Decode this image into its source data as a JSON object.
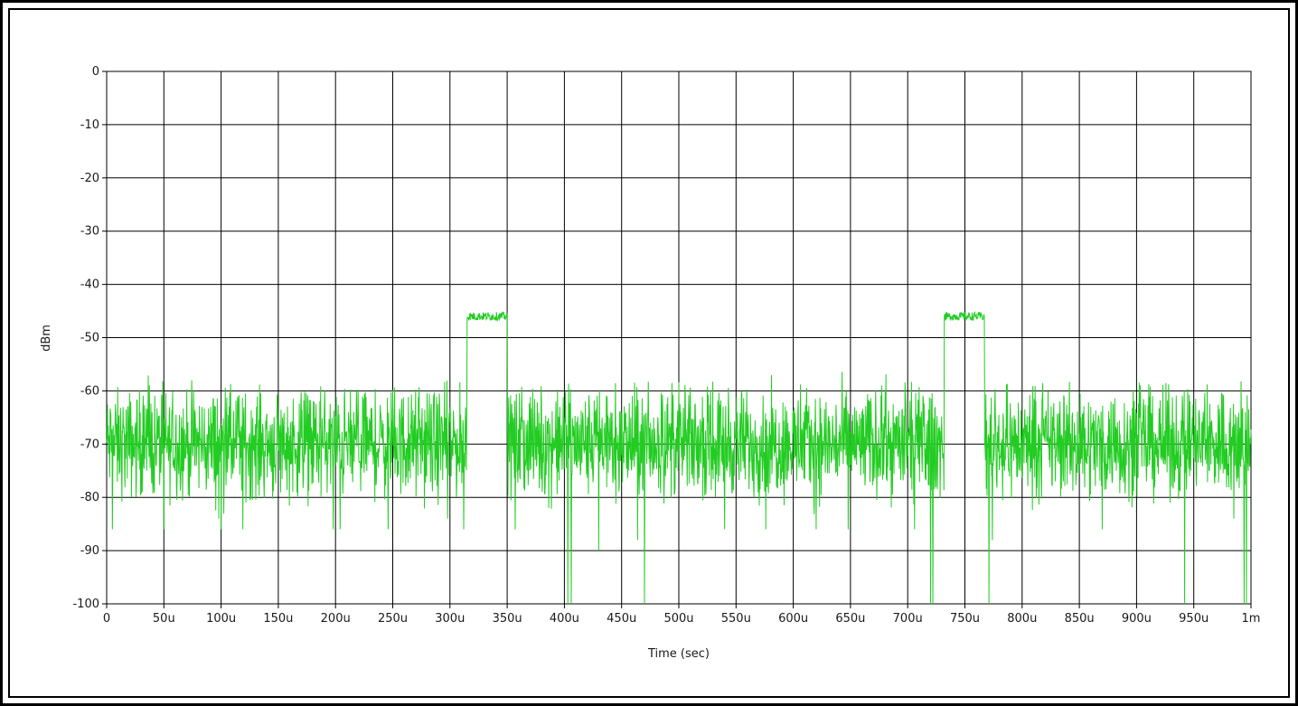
{
  "chart_data": {
    "type": "line",
    "title": "",
    "xlabel": "Time (sec)",
    "ylabel": "dBm",
    "xlim": [
      0,
      1000
    ],
    "ylim": [
      -100,
      0
    ],
    "x_unit": "microseconds",
    "grid": true,
    "legend": "none",
    "x_ticks": [
      {
        "value": 0,
        "label": "0"
      },
      {
        "value": 50,
        "label": "50u"
      },
      {
        "value": 100,
        "label": "100u"
      },
      {
        "value": 150,
        "label": "150u"
      },
      {
        "value": 200,
        "label": "200u"
      },
      {
        "value": 250,
        "label": "250u"
      },
      {
        "value": 300,
        "label": "300u"
      },
      {
        "value": 350,
        "label": "350u"
      },
      {
        "value": 400,
        "label": "400u"
      },
      {
        "value": 450,
        "label": "450u"
      },
      {
        "value": 500,
        "label": "500u"
      },
      {
        "value": 550,
        "label": "550u"
      },
      {
        "value": 600,
        "label": "600u"
      },
      {
        "value": 650,
        "label": "650u"
      },
      {
        "value": 700,
        "label": "700u"
      },
      {
        "value": 750,
        "label": "750u"
      },
      {
        "value": 800,
        "label": "800u"
      },
      {
        "value": 850,
        "label": "850u"
      },
      {
        "value": 900,
        "label": "900u"
      },
      {
        "value": 950,
        "label": "950u"
      },
      {
        "value": 1000,
        "label": "1m"
      }
    ],
    "y_ticks": [
      {
        "value": 0,
        "label": "0"
      },
      {
        "value": -10,
        "label": "-10"
      },
      {
        "value": -20,
        "label": "-20"
      },
      {
        "value": -30,
        "label": "-30"
      },
      {
        "value": -40,
        "label": "-40"
      },
      {
        "value": -50,
        "label": "-50"
      },
      {
        "value": -60,
        "label": "-60"
      },
      {
        "value": -70,
        "label": "-70"
      },
      {
        "value": -80,
        "label": "-80"
      },
      {
        "value": -90,
        "label": "-90"
      },
      {
        "value": -100,
        "label": "-100"
      }
    ],
    "series": [
      {
        "color": "#22cc22",
        "description": "noise floor approx -70 dBm with two pulse bursts at approx -46 dBm",
        "noise_floor_mean": -70,
        "noise_spread": 6,
        "bursts": [
          {
            "start": 315,
            "end": 350,
            "level": -46
          },
          {
            "start": 732,
            "end": 767,
            "level": -46
          }
        ],
        "dropouts": [
          {
            "x": 5,
            "y": -86
          },
          {
            "x": 50,
            "y": -86
          },
          {
            "x": 98,
            "y": -84
          },
          {
            "x": 100,
            "y": -86
          },
          {
            "x": 119,
            "y": -86
          },
          {
            "x": 198,
            "y": -86
          },
          {
            "x": 204,
            "y": -86
          },
          {
            "x": 246,
            "y": -86
          },
          {
            "x": 298,
            "y": -84
          },
          {
            "x": 312,
            "y": -86
          },
          {
            "x": 357,
            "y": -86
          },
          {
            "x": 403,
            "y": -100
          },
          {
            "x": 406,
            "y": -100
          },
          {
            "x": 430,
            "y": -90
          },
          {
            "x": 470,
            "y": -100
          },
          {
            "x": 464,
            "y": -88
          },
          {
            "x": 540,
            "y": -86
          },
          {
            "x": 576,
            "y": -86
          },
          {
            "x": 620,
            "y": -86
          },
          {
            "x": 648,
            "y": -86
          },
          {
            "x": 706,
            "y": -86
          },
          {
            "x": 720,
            "y": -100
          },
          {
            "x": 722,
            "y": -100
          },
          {
            "x": 771,
            "y": -100
          },
          {
            "x": 774,
            "y": -88
          },
          {
            "x": 870,
            "y": -86
          },
          {
            "x": 942,
            "y": -100
          },
          {
            "x": 985,
            "y": -84
          },
          {
            "x": 994,
            "y": -100
          },
          {
            "x": 996,
            "y": -100
          }
        ]
      }
    ]
  }
}
